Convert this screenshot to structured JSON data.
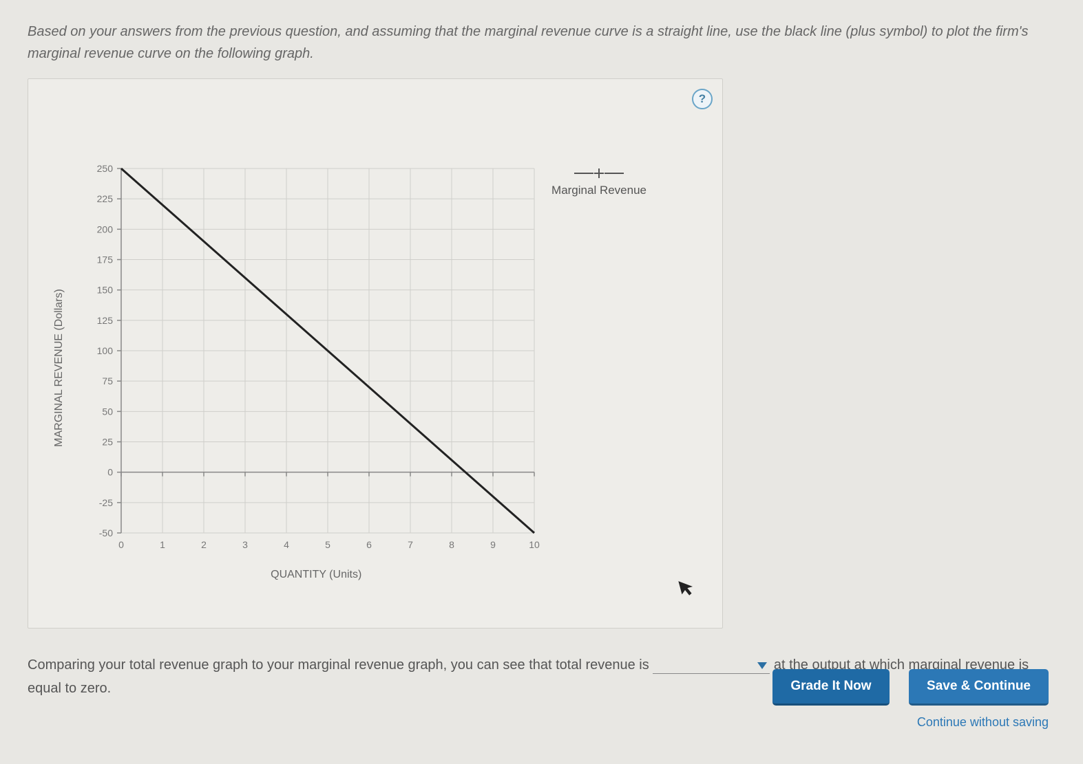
{
  "instruction": "Based on your answers from the previous question, and assuming that the marginal revenue curve is a straight line, use the black line (plus symbol) to plot the firm's marginal revenue curve on the following graph.",
  "help_label": "?",
  "chart": {
    "type": "line",
    "ylabel": "MARGINAL REVENUE (Dollars)",
    "xlabel": "QUANTITY (Units)",
    "xlim": [
      0,
      10
    ],
    "ylim": [
      -50,
      250
    ],
    "xticks": [
      0,
      1,
      2,
      3,
      4,
      5,
      6,
      7,
      8,
      9,
      10
    ],
    "yticks": [
      -50,
      -25,
      0,
      25,
      50,
      75,
      100,
      125,
      150,
      175,
      200,
      225,
      250
    ],
    "grid_color": "#cfceca",
    "axis_color": "#888",
    "background_color": "#eeede9",
    "line_color": "#222222",
    "line_width": 3,
    "series": {
      "x": [
        0,
        10
      ],
      "y": [
        250,
        -50
      ]
    }
  },
  "legend": {
    "label": "Marginal Revenue",
    "marker": "plus",
    "color": "#555555"
  },
  "follow": {
    "pre": "Comparing your total revenue graph to your marginal revenue graph, you can see that total revenue is ",
    "post": " at the output at which marginal revenue is equal to zero."
  },
  "buttons": {
    "grade": "Grade It Now",
    "save": "Save & Continue",
    "continue_without": "Continue without saving"
  }
}
